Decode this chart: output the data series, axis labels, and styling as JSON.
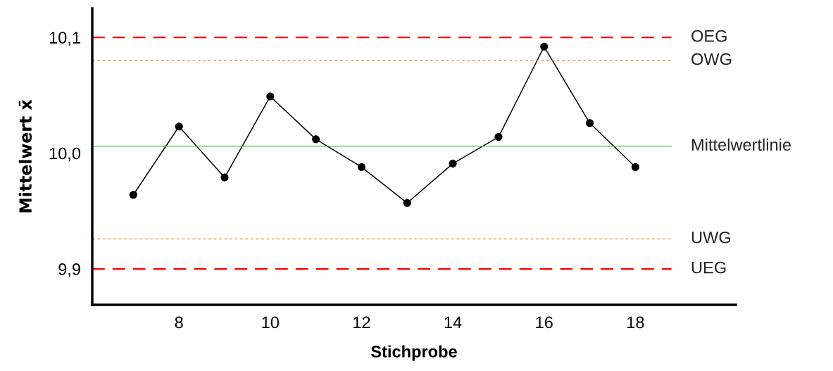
{
  "chart_data": {
    "type": "line",
    "xlabel": "Stichprobe",
    "ylabel": "Mittelwert x̄",
    "x": [
      7,
      8,
      9,
      10,
      11,
      12,
      13,
      14,
      15,
      16,
      17,
      18
    ],
    "series": [
      {
        "color": "#000000",
        "values": [
          9.964,
          10.023,
          9.979,
          10.049,
          10.012,
          9.988,
          9.957,
          9.991,
          10.014,
          10.092,
          10.026,
          9.988
        ]
      }
    ],
    "marker": "circle",
    "line_style": "solid",
    "grid": false,
    "legend": false,
    "xlim": [
      6.1,
      20.2
    ],
    "xticks": [
      8,
      10,
      12,
      14,
      16,
      18
    ],
    "ylim": [
      9.869,
      10.125
    ],
    "yticks": [
      {
        "value": 9.9,
        "label": "9,9"
      },
      {
        "value": 10.0,
        "label": "10,0"
      },
      {
        "value": 10.1,
        "label": "10,1"
      }
    ],
    "ref_lines": [
      {
        "axis": "y",
        "value": 10.1,
        "label": "OEG",
        "color": "#ff0000",
        "line_style": "dashed"
      },
      {
        "axis": "y",
        "value": 10.08,
        "label": "OWG",
        "color": "#ff8000",
        "line_style": "dotted"
      },
      {
        "axis": "y",
        "value": 10.006,
        "label": "Mittelwertlinie",
        "color": "#33cc33",
        "line_style": "solid"
      },
      {
        "axis": "y",
        "value": 9.926,
        "label": "UWG",
        "color": "#ff8000",
        "line_style": "dotted"
      },
      {
        "axis": "y",
        "value": 9.9,
        "label": "UEG",
        "color": "#ff0000",
        "line_style": "dashed"
      }
    ]
  }
}
